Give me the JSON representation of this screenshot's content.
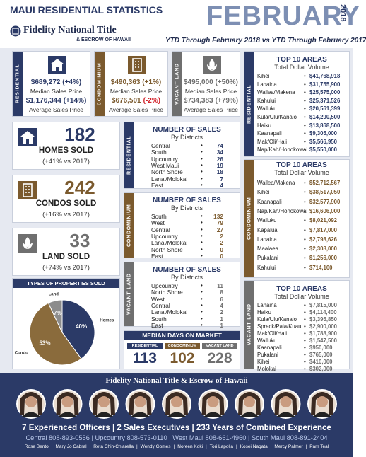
{
  "header": {
    "title": "MAUI RESIDENTIAL STATISTICS",
    "month": "FEBRUARY",
    "year": "2018",
    "brand": "Fidelity National Title",
    "brand_sub": "& ESCROW OF HAWAII",
    "period": "YTD Through February 2018 vs YTD Through February 2017"
  },
  "prices": [
    {
      "label": "RESIDENTIAL",
      "median": "$689,272 (+4%)",
      "median_label": "Median Sales Price",
      "average": "$1,176,344",
      "average_change": "(+14%)",
      "average_label": "Average Sales Price"
    },
    {
      "label": "CONDOMINIUM",
      "median": "$490,363 (+1%)",
      "median_label": "Median Sales Price",
      "average": "$676,501",
      "average_change": "(-2%)",
      "average_label": "Average Sales Price"
    },
    {
      "label": "VACANT LAND",
      "median": "$495,000 (+50%)",
      "median_label": "Median Sales Price",
      "average": "$734,383",
      "average_change": "(+79%)",
      "average_label": "Average Sales Price"
    }
  ],
  "sold": [
    {
      "count": "182",
      "label": "HOMES SOLD",
      "change": "(+41% vs 2017)"
    },
    {
      "count": "242",
      "label": "CONDOS SOLD",
      "change": "(+16% vs 2017)"
    },
    {
      "count": "33",
      "label": "LAND SOLD",
      "change": "(+74% vs 2017)"
    }
  ],
  "district_sales": [
    {
      "label": "RESIDENTIAL",
      "title": "NUMBER OF SALES",
      "subtitle": "By Districts",
      "rows": [
        [
          "Central",
          "74"
        ],
        [
          "South",
          "34"
        ],
        [
          "Upcountry",
          "26"
        ],
        [
          "West Maui",
          "19"
        ],
        [
          "North Shore",
          "18"
        ],
        [
          "Lanai/Molokai",
          "7"
        ],
        [
          "East",
          "4"
        ]
      ]
    },
    {
      "label": "CONDOMINIUM",
      "title": "NUMBER OF SALES",
      "subtitle": "By Districts",
      "rows": [
        [
          "South",
          "132"
        ],
        [
          "West",
          "79"
        ],
        [
          "Central",
          "27"
        ],
        [
          "Upcountry",
          "2"
        ],
        [
          "Lanai/Molokai",
          "2"
        ],
        [
          "North Shore",
          "0"
        ],
        [
          "East",
          "0"
        ]
      ]
    },
    {
      "label": "VACANT LAND",
      "title": "NUMBER OF SALES",
      "subtitle": "By Districts",
      "rows": [
        [
          "Upcountry",
          "11"
        ],
        [
          "North Shore",
          "8"
        ],
        [
          "West",
          "6"
        ],
        [
          "Central",
          "4"
        ],
        [
          "Lanai/Molokai",
          "2"
        ],
        [
          "South",
          "1"
        ],
        [
          "East",
          "1"
        ]
      ]
    }
  ],
  "top_areas": [
    {
      "label": "RESIDENTIAL",
      "title": "TOP 10 AREAS",
      "subtitle": "Total Dollar Volume",
      "rows": [
        [
          "Kihei",
          "$41,768,918"
        ],
        [
          "Lahaina",
          "$31,755,900"
        ],
        [
          "Wailea/Makena",
          "$25,575,000"
        ],
        [
          "Kahului",
          "$25,371,526"
        ],
        [
          "Wailuku",
          "$20,561,399"
        ],
        [
          "Kula/Ulu/Kanaio",
          "$14,290,500"
        ],
        [
          "Haiku",
          "$13,868,500"
        ],
        [
          "Kaanapali",
          "$9,305,000"
        ],
        [
          "Mak/Oli/Hali",
          "$5,566,950"
        ],
        [
          "Nap/Kah/Honokowai",
          "$5,550,000"
        ]
      ]
    },
    {
      "label": "CONDOMINIUM",
      "title": "TOP 10 AREAS",
      "subtitle": "Total Dollar Volume",
      "rows": [
        [
          "Wailea/Makena",
          "$52,712,567"
        ],
        [
          "Kihei",
          "$38,517,050"
        ],
        [
          "Kaanapali",
          "$32,577,900"
        ],
        [
          "Nap/Kah/Honokowai",
          "$16,606,000"
        ],
        [
          "Wailuku",
          "$8,021,092"
        ],
        [
          "Kapalua",
          "$7,817,000"
        ],
        [
          "Lahaina",
          "$2,798,626"
        ],
        [
          "Maalaea",
          "$2,308,000"
        ],
        [
          "Pukalani",
          "$1,256,000"
        ],
        [
          "Kahului",
          "$714,100"
        ]
      ]
    },
    {
      "label": "VACANT LAND",
      "title": "TOP 10 AREAS",
      "subtitle": "Total Dollar Volume",
      "rows": [
        [
          "Lahaina",
          "$7,815,000"
        ],
        [
          "Haiku",
          "$4,114,400"
        ],
        [
          "Kula/Ulu/Kanaio",
          "$3,395,850"
        ],
        [
          "Spreck/Paia/Kuau",
          "$2,900,000"
        ],
        [
          "Mak/Oli/Hali",
          "$1,788,900"
        ],
        [
          "Wailuku",
          "$1,547,500"
        ],
        [
          "Kaanapali",
          "$950,000"
        ],
        [
          "Pukalani",
          "$765,000"
        ],
        [
          "Kihei",
          "$410,000"
        ],
        [
          "Molokai",
          "$302,000"
        ]
      ]
    }
  ],
  "days_on_market": {
    "title": "MEDIAN DAYS ON MARKET",
    "items": [
      {
        "label": "RESIDENTIAL",
        "value": "113"
      },
      {
        "label": "CONDOMINIUM",
        "value": "102"
      },
      {
        "label": "VACANT LAND",
        "value": "228"
      }
    ]
  },
  "chart_data": {
    "type": "pie",
    "title": "TYPES OF PROPERTIES SOLD",
    "categories": [
      "Homes",
      "Condo",
      "Land"
    ],
    "values": [
      40,
      53,
      7
    ],
    "value_labels": [
      "40%",
      "53%",
      "7%"
    ],
    "colors": [
      "#2b3a67",
      "#8a6b3c",
      "#8c8c8c"
    ]
  },
  "footer": {
    "brand": "Fidelity National Title & Escrow of Hawaii",
    "tagline": "7 Experienced Officers | 2 Sales Executives | 233 Years of Combined Experience",
    "phones": "Central 808-893-0556 | Upcountry 808-573-0110 | West Maui 808-661-4960 | South Maui 808-891-2404",
    "names": [
      "Rose Bento",
      "Mary Jo Cabral",
      "Reta Chin-Chiarella",
      "Wendy Gomes",
      "Noreen Koki",
      "Tori Lapolla",
      "Kosei Nagata",
      "Mercy Palmer",
      "Pam Teal"
    ]
  }
}
